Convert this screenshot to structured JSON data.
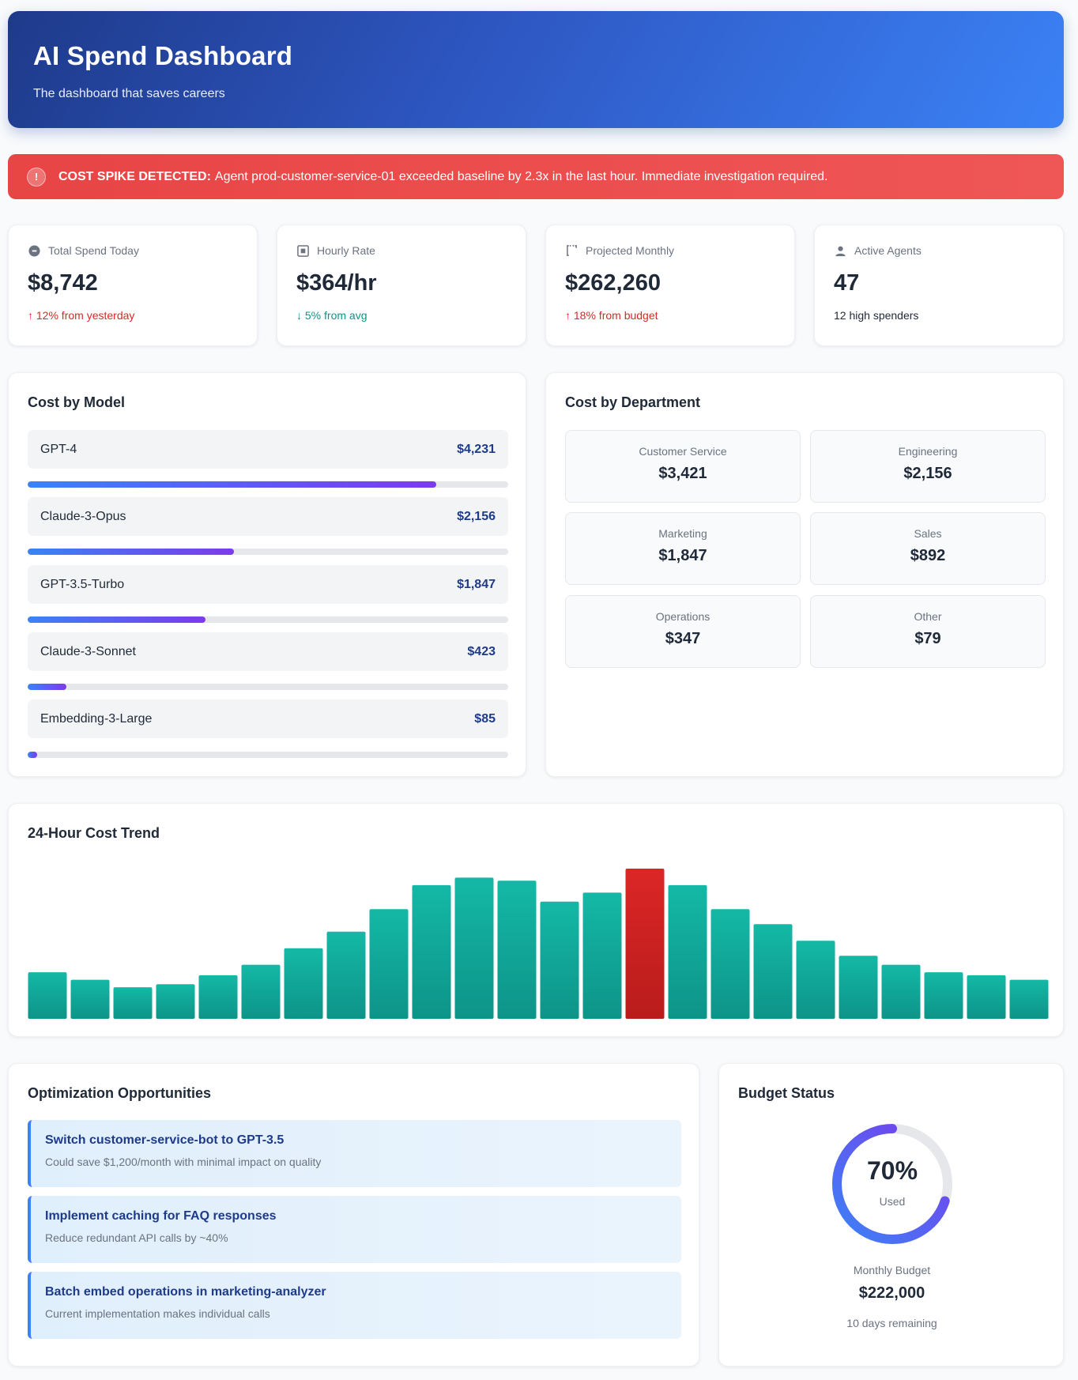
{
  "header": {
    "title": "AI Spend Dashboard",
    "subtitle": "The dashboard that saves careers"
  },
  "alert": {
    "icon": "exclamation-icon",
    "label": "COST SPIKE DETECTED:",
    "message": "Agent prod-customer-service-01 exceeded baseline by 2.3x in the last hour. Immediate investigation required."
  },
  "stats": [
    {
      "label": "Total Spend Today",
      "icon": "dollar-coin-icon",
      "value": "$8,742",
      "sub": "↑ 12% from yesterday",
      "tone": "red"
    },
    {
      "label": "Hourly Rate",
      "icon": "timer-icon",
      "value": "$364/hr",
      "sub": "↓ 5% from avg",
      "tone": "teal"
    },
    {
      "label": "Projected Monthly",
      "icon": "calendar-icon",
      "value": "$262,260",
      "sub": "↑ 18% from budget",
      "tone": "red"
    },
    {
      "label": "Active Agents",
      "icon": "user-icon",
      "value": "47",
      "sub": "12 high spenders",
      "tone": "dark"
    }
  ],
  "cost_by_model": {
    "title": "Cost by Model",
    "items": [
      {
        "name": "GPT-4",
        "value": "$4,231",
        "share": 0.85
      },
      {
        "name": "Claude-3-Opus",
        "value": "$2,156",
        "share": 0.43
      },
      {
        "name": "GPT-3.5-Turbo",
        "value": "$1,847",
        "share": 0.37
      },
      {
        "name": "Claude-3-Sonnet",
        "value": "$423",
        "share": 0.08
      },
      {
        "name": "Embedding-3-Large",
        "value": "$85",
        "share": 0.02
      }
    ]
  },
  "cost_by_department": {
    "title": "Cost by Department",
    "items": [
      {
        "name": "Customer Service",
        "value": "$3,421"
      },
      {
        "name": "Engineering",
        "value": "$2,156"
      },
      {
        "name": "Marketing",
        "value": "$1,847"
      },
      {
        "name": "Sales",
        "value": "$892"
      },
      {
        "name": "Operations",
        "value": "$347"
      },
      {
        "name": "Other",
        "value": "$79"
      }
    ]
  },
  "trend": {
    "title": "24-Hour Cost Trend",
    "colors": {
      "normal_top": "#14b8a6",
      "normal_bottom": "#0d9488",
      "spike_top": "#dc2626",
      "spike_bottom": "#b91c1c"
    }
  },
  "chart_data": {
    "type": "bar",
    "title": "24-Hour Cost Trend",
    "values": [
      31,
      26,
      21,
      23,
      29,
      36,
      47,
      58,
      73,
      89,
      94,
      92,
      78,
      84,
      100,
      89,
      73,
      63,
      52,
      42,
      36,
      31,
      29,
      26
    ],
    "highlight_index": 14,
    "ylim": [
      0,
      100
    ],
    "grid": false
  },
  "optimization": {
    "title": "Optimization Opportunities",
    "items": [
      {
        "title": "Switch customer-service-bot to GPT-3.5",
        "desc": "Could save $1,200/month with minimal impact on quality"
      },
      {
        "title": "Implement caching for FAQ responses",
        "desc": "Reduce redundant API calls by ~40%"
      },
      {
        "title": "Batch embed operations in marketing-analyzer",
        "desc": "Current implementation makes individual calls"
      }
    ]
  },
  "budget": {
    "title": "Budget Status",
    "percent_used": 70,
    "percent_label": "70%",
    "used_label": "Used",
    "monthly_label": "Monthly Budget",
    "monthly_value": "$222,000",
    "remaining": "10 days remaining",
    "ring_colors": [
      "#3b82f6",
      "#7c3aed"
    ]
  }
}
